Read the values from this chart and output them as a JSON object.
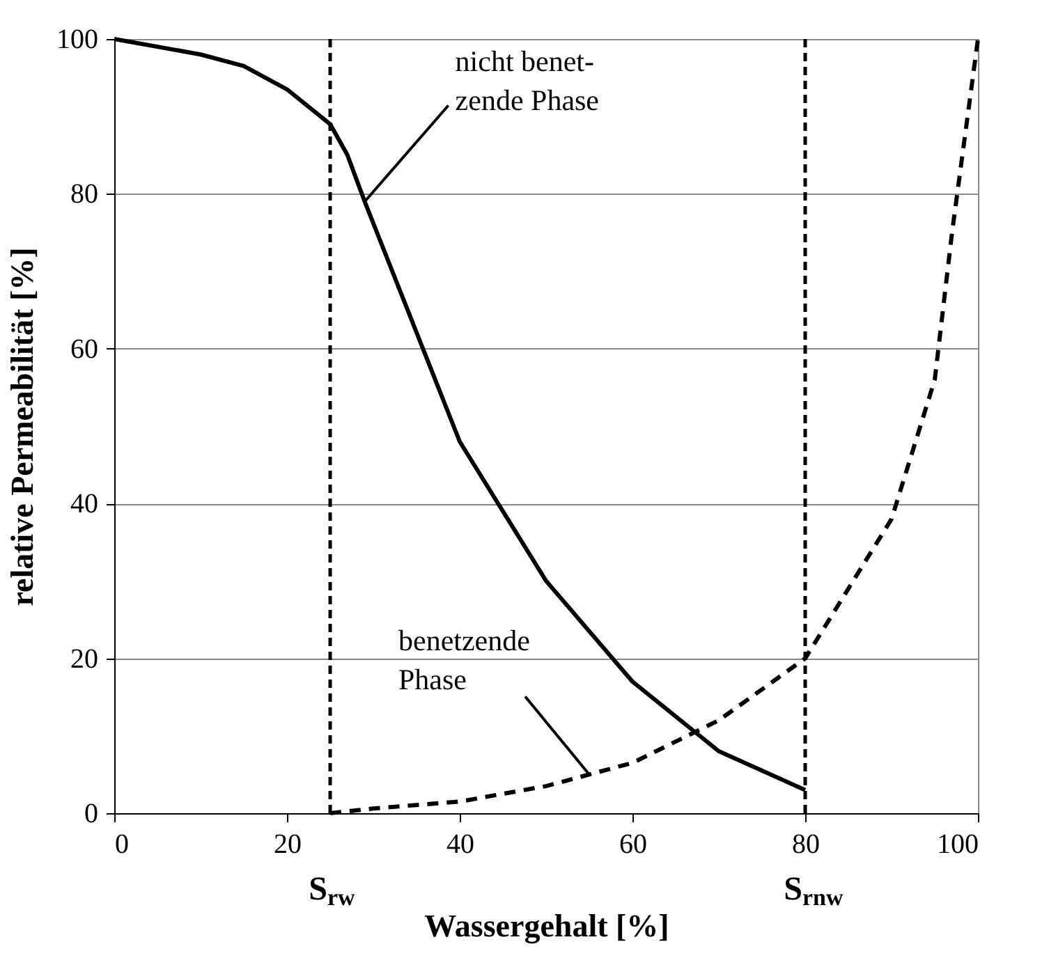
{
  "chart_data": {
    "type": "line",
    "xlabel": "Wassergehalt [%]",
    "ylabel": "relative Permeabilität [%]",
    "xlim": [
      0,
      100
    ],
    "ylim": [
      0,
      100
    ],
    "xticks": [
      0,
      20,
      40,
      60,
      80,
      100
    ],
    "yticks": [
      0,
      20,
      40,
      60,
      80,
      100
    ],
    "grid": "y",
    "marker": "none",
    "series": [
      {
        "color": "#000000",
        "line_style": "solid",
        "x": [
          0,
          10,
          15,
          20,
          25,
          27,
          29,
          40,
          50,
          60,
          70,
          80
        ],
        "values": [
          100,
          98,
          96.5,
          93.5,
          89,
          85,
          79,
          48,
          30,
          17,
          8,
          3
        ]
      },
      {
        "color": "#000000",
        "line_style": "dashed",
        "x": [
          25,
          30,
          40,
          50,
          60,
          70,
          80,
          90,
          95,
          97,
          100
        ],
        "values": [
          0,
          0.6,
          1.5,
          3.5,
          6.5,
          12,
          20,
          38,
          56,
          75,
          100
        ]
      }
    ],
    "ref_lines": [
      {
        "axis": "x",
        "value": 25,
        "label": "S$_{rw}$",
        "color": "#000000",
        "line_style": "dashed"
      },
      {
        "axis": "x",
        "value": 80,
        "label": "S$_{rnw}$",
        "color": "#000000",
        "line_style": "dashed"
      }
    ],
    "annotations": [
      {
        "text": "nicht benet-\nzende Phase",
        "x": 29,
        "y": 79
      },
      {
        "text": "benetzende\nPhase",
        "x": 55,
        "y": 5
      }
    ]
  }
}
